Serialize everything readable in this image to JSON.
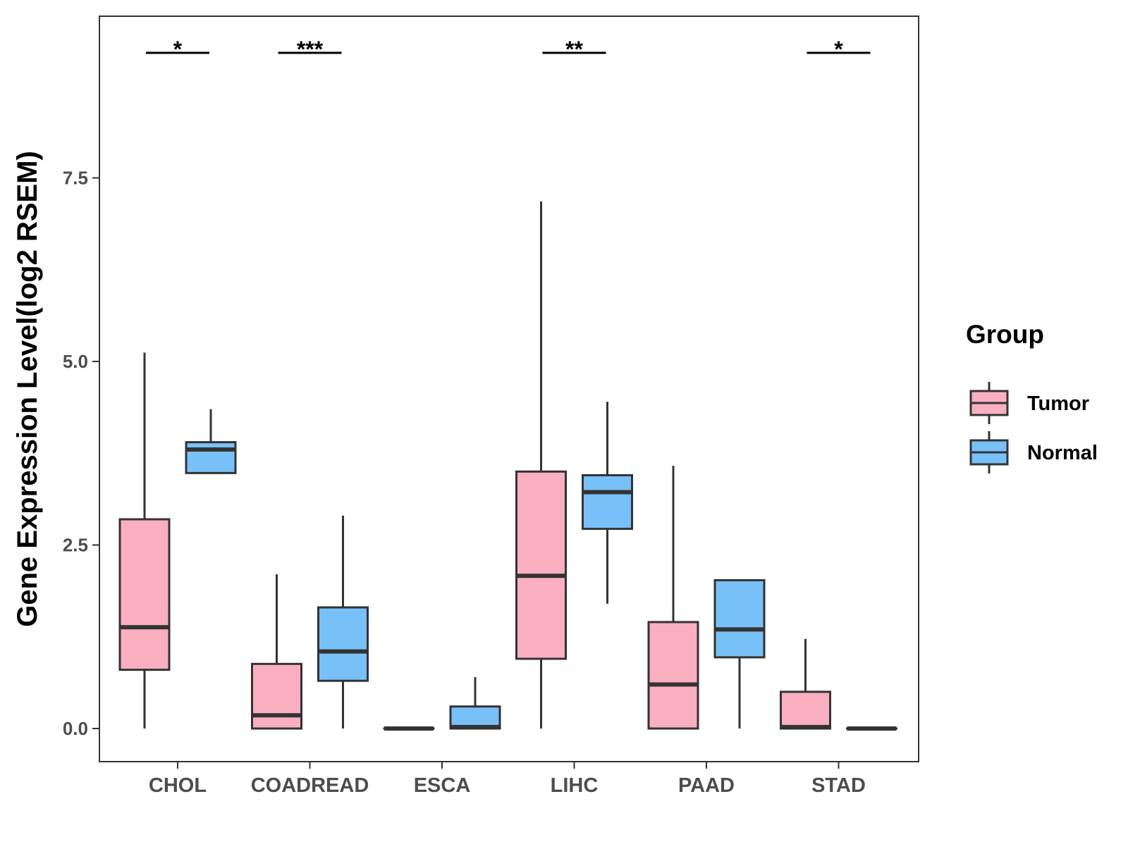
{
  "chart_data": {
    "type": "boxplot",
    "title": "",
    "xlabel": "",
    "ylabel": "Gene Expression Level(log2 RSEM)",
    "ylim": [
      -0.45,
      9.6
    ],
    "yticks": [
      0.0,
      2.5,
      5.0,
      7.5
    ],
    "ytick_labels": [
      "0.0",
      "2.5",
      "5.0",
      "7.5"
    ],
    "grid": false,
    "categories": [
      "CHOL",
      "COADREAD",
      "ESCA",
      "LIHC",
      "PAAD",
      "STAD"
    ],
    "legend": {
      "title": "Group",
      "position": "right",
      "entries": [
        {
          "name": "Tumor",
          "color": "#FAAFC1"
        },
        {
          "name": "Normal",
          "color": "#78C1F8"
        }
      ]
    },
    "series": [
      {
        "name": "Tumor",
        "color": "#FAAFC1",
        "boxes": [
          {
            "min": 0.0,
            "q1": 0.8,
            "median": 1.38,
            "q3": 2.85,
            "max": 5.12
          },
          {
            "min": 0.0,
            "q1": 0.0,
            "median": 0.18,
            "q3": 0.88,
            "max": 2.1
          },
          {
            "min": 0.0,
            "q1": 0.0,
            "median": 0.0,
            "q3": 0.0,
            "max": 0.0
          },
          {
            "min": 0.0,
            "q1": 0.95,
            "median": 2.08,
            "q3": 3.5,
            "max": 7.18
          },
          {
            "min": 0.0,
            "q1": 0.0,
            "median": 0.6,
            "q3": 1.45,
            "max": 3.58
          },
          {
            "min": 0.0,
            "q1": 0.0,
            "median": 0.02,
            "q3": 0.5,
            "max": 1.22
          }
        ]
      },
      {
        "name": "Normal",
        "color": "#78C1F8",
        "boxes": [
          {
            "min": 3.48,
            "q1": 3.48,
            "median": 3.8,
            "q3": 3.9,
            "max": 4.35
          },
          {
            "min": 0.0,
            "q1": 0.65,
            "median": 1.05,
            "q3": 1.65,
            "max": 2.9
          },
          {
            "min": 0.0,
            "q1": 0.0,
            "median": 0.02,
            "q3": 0.3,
            "max": 0.7
          },
          {
            "min": 1.7,
            "q1": 2.72,
            "median": 3.22,
            "q3": 3.45,
            "max": 4.45
          },
          {
            "min": 0.0,
            "q1": 0.97,
            "median": 1.35,
            "q3": 2.02,
            "max": 2.02
          },
          {
            "min": 0.0,
            "q1": 0.0,
            "median": 0.0,
            "q3": 0.0,
            "max": 0.0
          }
        ]
      }
    ],
    "significance": [
      {
        "category": "CHOL",
        "label": "*"
      },
      {
        "category": "COADREAD",
        "label": "***"
      },
      {
        "category": "LIHC",
        "label": "**"
      },
      {
        "category": "STAD",
        "label": "*"
      }
    ]
  }
}
